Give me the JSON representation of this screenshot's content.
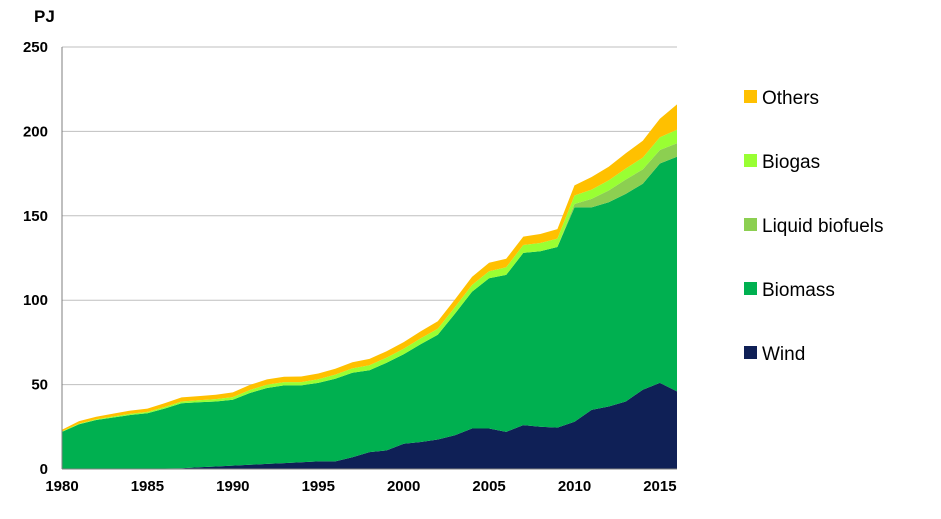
{
  "chart_data": {
    "type": "area",
    "stacked": true,
    "ylabel": "PJ",
    "xlim": [
      1980,
      2016
    ],
    "ylim": [
      0,
      250
    ],
    "x_ticks": [
      "1980",
      "1985",
      "1990",
      "1995",
      "2000",
      "2005",
      "2010",
      "2015"
    ],
    "y_ticks": [
      "0",
      "50",
      "100",
      "150",
      "200",
      "250"
    ],
    "grid": "horizontal",
    "legend_position": "right",
    "x": [
      1980,
      1981,
      1982,
      1983,
      1984,
      1985,
      1986,
      1987,
      1988,
      1989,
      1990,
      1991,
      1992,
      1993,
      1994,
      1995,
      1996,
      1997,
      1998,
      1999,
      2000,
      2001,
      2002,
      2003,
      2004,
      2005,
      2006,
      2007,
      2008,
      2009,
      2010,
      2011,
      2012,
      2013,
      2014,
      2015,
      2016
    ],
    "series": [
      {
        "name": "Wind",
        "color": "#0f2056",
        "values": [
          0,
          0,
          0,
          0,
          0,
          0,
          0.3,
          0.5,
          1,
          1.5,
          2,
          2.5,
          3,
          3.5,
          4,
          4.5,
          4.5,
          7,
          10,
          11,
          15,
          16,
          17.5,
          20,
          24,
          24,
          22,
          26,
          25,
          24.5,
          28,
          35,
          37,
          40,
          47,
          51,
          46
        ]
      },
      {
        "name": "Biomass",
        "color": "#00b050",
        "values": [
          22,
          26.5,
          29,
          30.5,
          32,
          33,
          35.5,
          38.5,
          38.5,
          38.5,
          39,
          42.5,
          45,
          46,
          45.5,
          46.5,
          49,
          50,
          48.5,
          52,
          53,
          58,
          62,
          72,
          81,
          89,
          93,
          102,
          104,
          107,
          127,
          120,
          121,
          123,
          122,
          130,
          139
        ]
      },
      {
        "name": "Liquid biofuels",
        "color": "#8ccf51",
        "values": [
          0,
          0,
          0,
          0,
          0,
          0,
          0,
          0,
          0,
          0,
          0,
          0,
          0,
          0,
          0,
          0,
          0,
          0,
          0,
          0,
          0,
          0,
          0,
          0,
          0,
          0,
          0,
          0,
          0,
          0,
          2,
          5,
          7,
          8.5,
          8.5,
          8,
          8
        ]
      },
      {
        "name": "Biogas",
        "color": "#99ff33",
        "values": [
          0.3,
          0.4,
          0.5,
          0.6,
          0.7,
          0.8,
          0.9,
          1,
          1.2,
          1.4,
          1.6,
          1.8,
          2,
          2,
          2,
          2.2,
          2.4,
          2.6,
          3,
          3,
          3.2,
          3.4,
          3.6,
          3.8,
          4,
          4.2,
          4.5,
          4.7,
          4.9,
          5,
          5,
          5.5,
          6,
          6.5,
          7,
          7.5,
          8
        ]
      },
      {
        "name": "Others",
        "color": "#ffc000",
        "values": [
          1,
          1.5,
          1.5,
          1.7,
          1.9,
          2,
          2.2,
          2.4,
          2.5,
          2.6,
          2.8,
          3,
          3.1,
          3.2,
          3.3,
          3.4,
          3.5,
          3.6,
          3.7,
          3.8,
          4,
          4.2,
          4.4,
          4.6,
          4.8,
          5,
          5,
          5,
          5.3,
          5.6,
          6,
          7.5,
          8,
          9,
          10,
          11,
          15
        ]
      }
    ]
  }
}
